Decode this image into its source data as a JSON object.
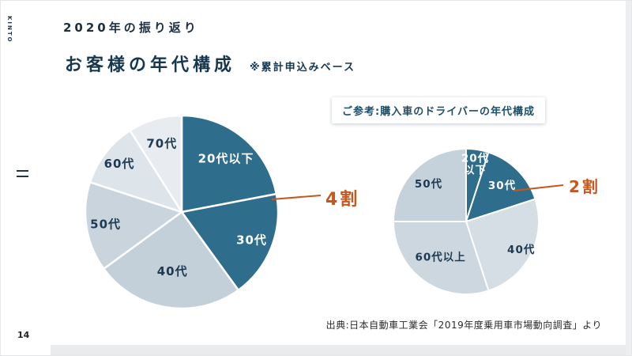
{
  "brand": {
    "name": "KINTO"
  },
  "header": {
    "title": "2020年の振り返り"
  },
  "heading": {
    "title": "お客様の年代構成",
    "note": "※累計申込みベース"
  },
  "reference_box": {
    "label": "ご参考:購入車のドライバーの年代構成"
  },
  "footer": {
    "source": "出典:日本自動車工業会「2019年度乗用車市場動向調査」より",
    "page_number": "14"
  },
  "colors": {
    "dark_teal": "#2f6d8c",
    "accent_orange": "#c5571f",
    "heading_navy": "#17374f",
    "label_navy": "#1e3a52"
  },
  "chart_data": [
    {
      "type": "pie",
      "title": "お客様の年代構成",
      "subtitle": "※累計申込みベース",
      "start_angle_deg": 0,
      "direction": "clockwise",
      "unit": "%",
      "annotation": {
        "text": "4割",
        "value_percent": 40,
        "covers": [
          "20代以下",
          "30代"
        ]
      },
      "dashed_divider_at_percent": 22,
      "slices": [
        {
          "label": "20代以下",
          "value": 22,
          "color": "#2f6d8c",
          "label_color": "#ffffff",
          "label_r": 0.72
        },
        {
          "label": "30代",
          "value": 18,
          "color": "#2f6d8c",
          "label_color": "#ffffff",
          "label_r": 0.78
        },
        {
          "label": "40代",
          "value": 25,
          "color": "#c3cfd9",
          "label_color": "#1e3a52",
          "label_r": 0.62
        },
        {
          "label": "50代",
          "value": 15,
          "color": "#c9d4dd",
          "label_color": "#1e3a52",
          "label_r": 0.8
        },
        {
          "label": "60代",
          "value": 11,
          "color": "#dde4ea",
          "label_color": "#1e3a52",
          "label_r": 0.82
        },
        {
          "label": "70代",
          "value": 9,
          "color": "#e8ecf0",
          "label_color": "#1e3a52",
          "label_r": 0.74
        }
      ]
    },
    {
      "type": "pie",
      "title": "ご参考:購入車のドライバーの年代構成",
      "start_angle_deg": 0,
      "direction": "clockwise",
      "unit": "%",
      "annotation": {
        "text": "2割",
        "value_percent": 20,
        "covers": [
          "20代以下",
          "30代"
        ]
      },
      "dashed_divider_at_percent": 5,
      "slices": [
        {
          "label": "20代\n以下",
          "value": 5,
          "color": "#2f6d8c",
          "label_color": "#ffffff",
          "label_r": 0.8
        },
        {
          "label": "30代",
          "value": 15,
          "color": "#2f6d8c",
          "label_color": "#ffffff",
          "label_r": 0.7
        },
        {
          "label": "40代",
          "value": 25,
          "color": "#d6dee5",
          "label_color": "#1e3a52",
          "label_r": 0.85
        },
        {
          "label": "60代以上",
          "value": 30,
          "color": "#ccd7df",
          "label_color": "#1e3a52",
          "label_r": 0.6
        },
        {
          "label": "50代",
          "value": 25,
          "color": "#c6d2db",
          "label_color": "#1e3a52",
          "label_r": 0.73
        }
      ]
    }
  ]
}
